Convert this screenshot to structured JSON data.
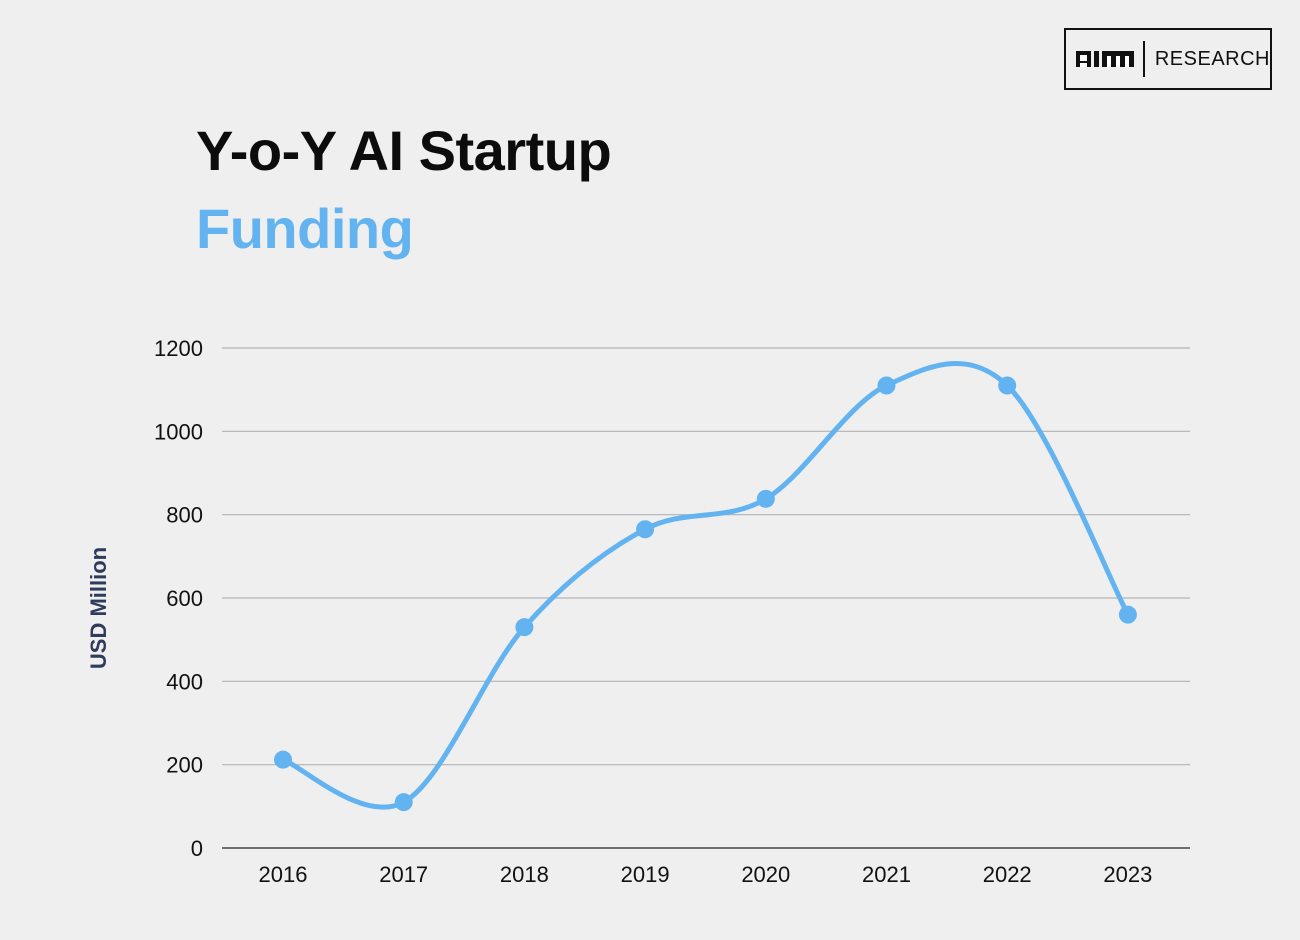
{
  "brand": {
    "logo_text": "RESEARCH"
  },
  "title": {
    "line1": "Y-o-Y AI Startup",
    "line2": "Funding"
  },
  "colors": {
    "series": "#63b3f0",
    "title_accent": "#63b3f0",
    "grid": "#b3b3b3",
    "ylabel": "#2f3b5c"
  },
  "chart_data": {
    "type": "line",
    "title": "Y-o-Y AI Startup Funding",
    "xlabel": "",
    "ylabel": "USD Million",
    "x": [
      "2016",
      "2017",
      "2018",
      "2019",
      "2020",
      "2021",
      "2022",
      "2023"
    ],
    "series": [
      {
        "values": [
          212,
          110,
          530,
          765,
          838,
          1110,
          1110,
          560
        ]
      }
    ],
    "ylim": [
      0,
      1200
    ],
    "yticks": [
      0,
      200,
      400,
      600,
      800,
      1000,
      1200
    ],
    "grid": true,
    "smooth": true,
    "markers": true,
    "legend": "none"
  }
}
